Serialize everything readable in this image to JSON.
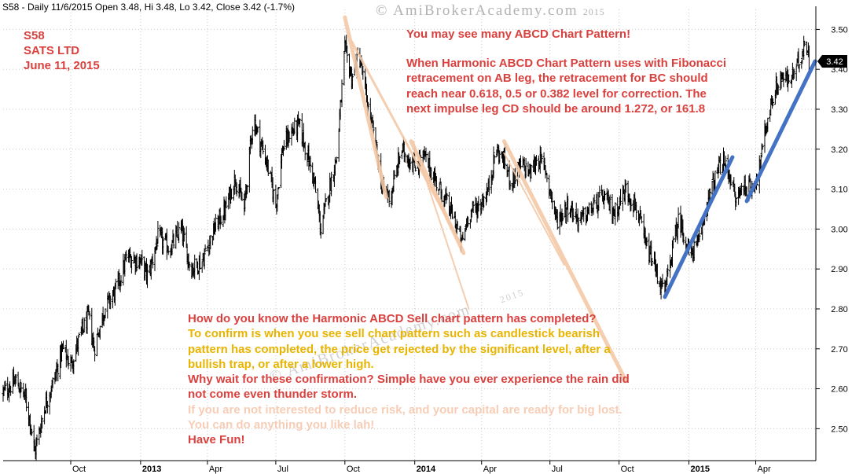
{
  "header": {
    "text": "S58 - Daily 11/6/2015 Open 3.48, Hi 3.48, Lo 3.42, Close 3.42 (-1.7%)"
  },
  "watermark": {
    "text": "© AmiBrokerAcademy.com",
    "year": "2015"
  },
  "symbol_info": {
    "ticker": "S58",
    "name": "SATS LTD",
    "date": "June 11, 2015"
  },
  "note_top": [
    "You may see many ABCD Chart Pattern!",
    "When Harmonic ABCD Chart Pattern uses with Fibonacci retracement on AB leg, the retracement for BC should reach near 0.618, 0.5 or 0.382 level for correction. The next impulse leg CD should be around 1.272, or 161.8"
  ],
  "note_bottom": [
    {
      "text": "How do you know the Harmonic ABCD Sell chart pattern has completed?",
      "color": "#d9413f"
    },
    {
      "text": "To confirm is when you see sell chart pattern such as candlestick bearish",
      "color": "#e8b400"
    },
    {
      "text": "pattern has completed, the price get rejected by the significant level, after a",
      "color": "#e8b400"
    },
    {
      "text": "bullish trap, or after a lower high.",
      "color": "#e8b400"
    },
    {
      "text": "Why wait for these confirmation? Simple have you ever experience the rain did",
      "color": "#d9413f"
    },
    {
      "text": "not come even thunder storm.",
      "color": "#d9413f"
    },
    {
      "text": "If you are not interested to reduce risk, and your capital are ready for big lost.",
      "color": "#f7cdb6"
    },
    {
      "text": "You can do anything you like lah!",
      "color": "#f7cdb6"
    },
    {
      "text": "Have Fun!",
      "color": "#d9413f"
    }
  ],
  "colors": {
    "price": "#000000",
    "grid": "#c8c8c8",
    "abcd_sell": "#f5c9a8",
    "abcd_buy": "#4472c4",
    "last_label_bg": "#000000",
    "last_label_fg": "#ffffff"
  },
  "chart_data": {
    "type": "line",
    "style": "ohlc bars",
    "ylim": [
      2.42,
      3.55
    ],
    "yticks": [
      2.5,
      2.6,
      2.7,
      2.8,
      2.9,
      3.0,
      3.1,
      3.2,
      3.3,
      3.4,
      3.5
    ],
    "ytick_labels": [
      "2.50",
      "2.60",
      "2.70",
      "2.80",
      "2.90",
      "3.00",
      "3.10",
      "3.20",
      "3.30",
      "3.40",
      "3.50"
    ],
    "xlim": [
      "2012-07-03",
      "2015-06-20"
    ],
    "xticks": [
      {
        "date": "2012-10-01",
        "label": "Oct",
        "bold": false
      },
      {
        "date": "2013-01-02",
        "label": "2013",
        "bold": true
      },
      {
        "date": "2013-04-01",
        "label": "Apr",
        "bold": false
      },
      {
        "date": "2013-07-01",
        "label": "Jul",
        "bold": false
      },
      {
        "date": "2013-10-01",
        "label": "Oct",
        "bold": false
      },
      {
        "date": "2014-01-02",
        "label": "2014",
        "bold": true
      },
      {
        "date": "2014-04-01",
        "label": "Apr",
        "bold": false
      },
      {
        "date": "2014-07-01",
        "label": "Jul",
        "bold": false
      },
      {
        "date": "2014-10-01",
        "label": "Oct",
        "bold": false
      },
      {
        "date": "2015-01-02",
        "label": "2015",
        "bold": true
      },
      {
        "date": "2015-04-01",
        "label": "Apr",
        "bold": false
      }
    ],
    "last_value": 3.42,
    "last_value_label": "3.42",
    "close_path": [
      [
        "2012-07-03",
        2.59
      ],
      [
        "2012-07-20",
        2.62
      ],
      [
        "2012-08-01",
        2.58
      ],
      [
        "2012-08-08",
        2.52
      ],
      [
        "2012-08-14",
        2.44
      ],
      [
        "2012-08-28",
        2.56
      ],
      [
        "2012-09-10",
        2.63
      ],
      [
        "2012-09-20",
        2.7
      ],
      [
        "2012-10-01",
        2.66
      ],
      [
        "2012-10-15",
        2.74
      ],
      [
        "2012-10-25",
        2.78
      ],
      [
        "2012-11-01",
        2.7
      ],
      [
        "2012-11-15",
        2.8
      ],
      [
        "2012-12-01",
        2.85
      ],
      [
        "2012-12-15",
        2.93
      ],
      [
        "2013-01-02",
        2.92
      ],
      [
        "2013-01-12",
        2.88
      ],
      [
        "2013-01-25",
        2.98
      ],
      [
        "2013-02-10",
        2.95
      ],
      [
        "2013-02-25",
        3.0
      ],
      [
        "2013-03-10",
        2.9
      ],
      [
        "2013-03-25",
        2.92
      ],
      [
        "2013-04-10",
        3.0
      ],
      [
        "2013-04-25",
        3.05
      ],
      [
        "2013-05-08",
        3.13
      ],
      [
        "2013-05-20",
        3.05
      ],
      [
        "2013-06-01",
        3.28
      ],
      [
        "2013-06-10",
        3.22
      ],
      [
        "2013-06-20",
        3.16
      ],
      [
        "2013-07-01",
        3.06
      ],
      [
        "2013-07-10",
        3.2
      ],
      [
        "2013-07-20",
        3.24
      ],
      [
        "2013-08-01",
        3.26
      ],
      [
        "2013-08-10",
        3.2
      ],
      [
        "2013-08-20",
        3.13
      ],
      [
        "2013-08-30",
        3.0
      ],
      [
        "2013-09-10",
        3.1
      ],
      [
        "2013-09-20",
        3.18
      ],
      [
        "2013-10-01",
        3.45
      ],
      [
        "2013-10-10",
        3.38
      ],
      [
        "2013-10-20",
        3.44
      ],
      [
        "2013-11-01",
        3.3
      ],
      [
        "2013-11-10",
        3.22
      ],
      [
        "2013-11-20",
        3.1
      ],
      [
        "2013-12-01",
        3.08
      ],
      [
        "2013-12-15",
        3.2
      ],
      [
        "2014-01-02",
        3.16
      ],
      [
        "2014-01-15",
        3.18
      ],
      [
        "2014-01-25",
        3.14
      ],
      [
        "2014-02-10",
        3.08
      ],
      [
        "2014-02-25",
        3.02
      ],
      [
        "2014-03-05",
        2.96
      ],
      [
        "2014-03-15",
        3.04
      ],
      [
        "2014-03-30",
        3.06
      ],
      [
        "2014-04-10",
        3.1
      ],
      [
        "2014-04-20",
        3.2
      ],
      [
        "2014-05-01",
        3.17
      ],
      [
        "2014-05-10",
        3.12
      ],
      [
        "2014-05-25",
        3.16
      ],
      [
        "2014-06-05",
        3.14
      ],
      [
        "2014-06-15",
        3.18
      ],
      [
        "2014-06-25",
        3.15
      ],
      [
        "2014-07-10",
        3.02
      ],
      [
        "2014-07-25",
        3.06
      ],
      [
        "2014-08-10",
        3.02
      ],
      [
        "2014-08-25",
        3.05
      ],
      [
        "2014-09-10",
        3.08
      ],
      [
        "2014-09-25",
        3.04
      ],
      [
        "2014-10-10",
        3.1
      ],
      [
        "2014-10-25",
        3.05
      ],
      [
        "2014-11-05",
        2.96
      ],
      [
        "2014-11-15",
        2.92
      ],
      [
        "2014-11-25",
        2.86
      ],
      [
        "2014-12-01",
        2.84
      ],
      [
        "2014-12-10",
        2.94
      ],
      [
        "2014-12-20",
        3.03
      ],
      [
        "2015-01-02",
        2.94
      ],
      [
        "2015-01-15",
        2.96
      ],
      [
        "2015-01-25",
        3.06
      ],
      [
        "2015-02-05",
        3.12
      ],
      [
        "2015-02-15",
        3.17
      ],
      [
        "2015-02-25",
        3.14
      ],
      [
        "2015-03-05",
        3.07
      ],
      [
        "2015-03-15",
        3.11
      ],
      [
        "2015-03-25",
        3.1
      ],
      [
        "2015-04-05",
        3.14
      ],
      [
        "2015-04-15",
        3.26
      ],
      [
        "2015-04-25",
        3.34
      ],
      [
        "2015-05-05",
        3.38
      ],
      [
        "2015-05-15",
        3.37
      ],
      [
        "2015-05-25",
        3.4
      ],
      [
        "2015-06-01",
        3.44
      ],
      [
        "2015-06-06",
        3.48
      ],
      [
        "2015-06-11",
        3.42
      ]
    ],
    "trendlines": [
      {
        "color": "abcd_sell",
        "width": 5,
        "points": [
          [
            "2013-10-01",
            3.53
          ],
          [
            "2013-11-25",
            3.08
          ]
        ]
      },
      {
        "color": "abcd_sell",
        "width": 5,
        "points": [
          [
            "2013-12-28",
            3.22
          ],
          [
            "2014-03-08",
            2.94
          ]
        ]
      },
      {
        "color": "abcd_sell",
        "width": 3,
        "points": [
          [
            "2013-10-10",
            3.47
          ],
          [
            "2014-03-05",
            2.96
          ]
        ]
      },
      {
        "color": "abcd_sell",
        "width": 2,
        "points": [
          [
            "2013-12-31",
            3.22
          ],
          [
            "2014-03-15",
            2.8
          ]
        ]
      },
      {
        "color": "abcd_sell",
        "width": 5,
        "points": [
          [
            "2014-05-01",
            3.22
          ],
          [
            "2014-10-10",
            2.62
          ]
        ]
      },
      {
        "color": "abcd_sell",
        "width": 2,
        "points": [
          [
            "2014-05-01",
            3.19
          ],
          [
            "2014-07-20",
            2.91
          ]
        ]
      },
      {
        "color": "abcd_buy",
        "width": 5,
        "points": [
          [
            "2014-12-01",
            2.83
          ],
          [
            "2015-03-01",
            3.18
          ]
        ]
      },
      {
        "color": "abcd_buy",
        "width": 5,
        "points": [
          [
            "2015-03-20",
            3.07
          ],
          [
            "2015-06-19",
            3.42
          ]
        ]
      }
    ]
  }
}
